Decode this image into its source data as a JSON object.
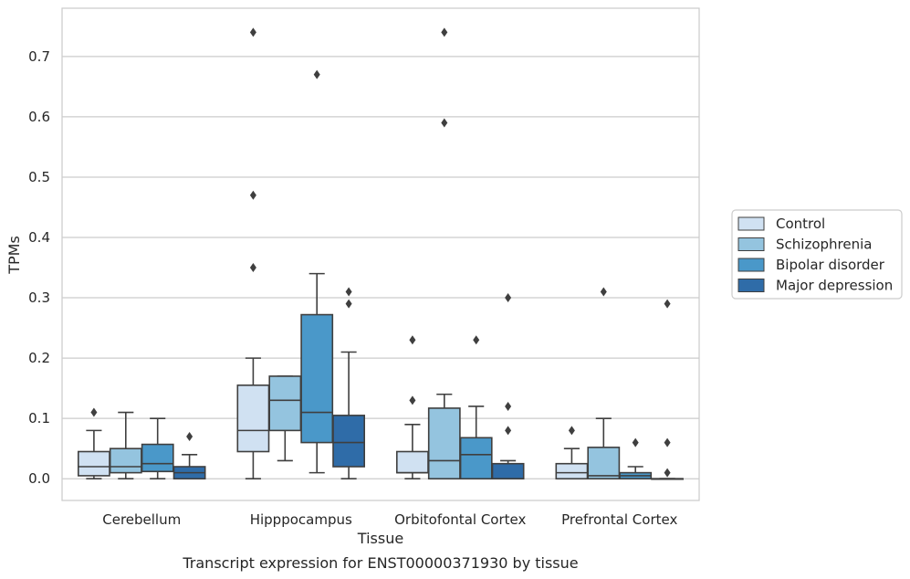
{
  "chart_data": {
    "type": "box",
    "ylabel": "TPMs",
    "xlabel": "Tissue",
    "caption": "Transcript expression for ENST00000371930 by tissue",
    "ylim": [
      -0.036,
      0.78
    ],
    "yticks": [
      0.0,
      0.1,
      0.2,
      0.3,
      0.4,
      0.5,
      0.6,
      0.7
    ],
    "ytick_labels": [
      "0.0",
      "0.1",
      "0.2",
      "0.3",
      "0.4",
      "0.5",
      "0.6",
      "0.7"
    ],
    "grid": "horizontal",
    "legend_position": "right",
    "categories": [
      "Cerebellum",
      "Hipppocampus",
      "Orbitofontal Cortex",
      "Prefrontal Cortex"
    ],
    "series": [
      {
        "name": "Control",
        "color": "#d0e1f2",
        "boxes": [
          {
            "min": 0.0,
            "q1": 0.005,
            "median": 0.02,
            "q3": 0.045,
            "max": 0.08,
            "outliers": [
              0.11
            ]
          },
          {
            "min": 0.0,
            "q1": 0.045,
            "median": 0.08,
            "q3": 0.155,
            "max": 0.2,
            "outliers": [
              0.35,
              0.47,
              0.74
            ]
          },
          {
            "min": 0.0,
            "q1": 0.01,
            "median": 0.01,
            "q3": 0.045,
            "max": 0.09,
            "outliers": [
              0.13,
              0.23
            ]
          },
          {
            "min": 0.0,
            "q1": 0.0,
            "median": 0.01,
            "q3": 0.025,
            "max": 0.05,
            "outliers": [
              0.08
            ]
          }
        ]
      },
      {
        "name": "Schizophrenia",
        "color": "#94c4df",
        "boxes": [
          {
            "min": 0.0,
            "q1": 0.01,
            "median": 0.02,
            "q3": 0.05,
            "max": 0.11,
            "outliers": []
          },
          {
            "min": 0.03,
            "q1": 0.08,
            "median": 0.13,
            "q3": 0.17,
            "max": 0.17,
            "outliers": []
          },
          {
            "min": 0.0,
            "q1": 0.0,
            "median": 0.03,
            "q3": 0.117,
            "max": 0.14,
            "outliers": [
              0.59,
              0.74
            ]
          },
          {
            "min": 0.0,
            "q1": 0.0,
            "median": 0.005,
            "q3": 0.052,
            "max": 0.1,
            "outliers": [
              0.31
            ]
          }
        ]
      },
      {
        "name": "Bipolar disorder",
        "color": "#4a98c9",
        "boxes": [
          {
            "min": 0.0,
            "q1": 0.012,
            "median": 0.025,
            "q3": 0.057,
            "max": 0.1,
            "outliers": []
          },
          {
            "min": 0.01,
            "q1": 0.06,
            "median": 0.11,
            "q3": 0.272,
            "max": 0.34,
            "outliers": [
              0.67
            ]
          },
          {
            "min": 0.0,
            "q1": 0.0,
            "median": 0.04,
            "q3": 0.068,
            "max": 0.12,
            "outliers": [
              0.23
            ]
          },
          {
            "min": 0.0,
            "q1": 0.0,
            "median": 0.005,
            "q3": 0.01,
            "max": 0.02,
            "outliers": [
              0.06
            ]
          }
        ]
      },
      {
        "name": "Major depression",
        "color": "#2f6ca8",
        "boxes": [
          {
            "min": 0.0,
            "q1": 0.0,
            "median": 0.01,
            "q3": 0.02,
            "max": 0.04,
            "outliers": [
              0.07
            ]
          },
          {
            "min": 0.0,
            "q1": 0.02,
            "median": 0.06,
            "q3": 0.105,
            "max": 0.21,
            "outliers": [
              0.29,
              0.31
            ]
          },
          {
            "min": 0.0,
            "q1": 0.0,
            "median": 0.0,
            "q3": 0.025,
            "max": 0.03,
            "outliers": [
              0.08,
              0.12,
              0.3
            ]
          },
          {
            "min": 0.0,
            "q1": 0.0,
            "median": 0.0,
            "q3": 0.0,
            "max": 0.0,
            "outliers": [
              0.01,
              0.06,
              0.29
            ]
          }
        ]
      }
    ]
  }
}
